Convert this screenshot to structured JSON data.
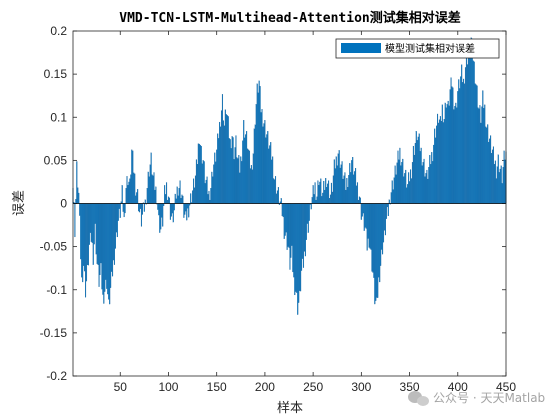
{
  "chart_data": {
    "type": "bar",
    "title": "VMD-TCN-LSTM-Multihead-Attention测试集相对误差",
    "xlabel": "样本",
    "ylabel": "误差",
    "xlim": [
      1,
      450
    ],
    "ylim": [
      -0.2,
      0.2
    ],
    "x_ticks": [
      50,
      100,
      150,
      200,
      250,
      300,
      350,
      400,
      450
    ],
    "y_ticks": [
      -0.2,
      -0.15,
      -0.1,
      -0.05,
      0,
      0.05,
      0.1,
      0.15,
      0.2
    ],
    "x_tick_labels": [
      "50",
      "100",
      "150",
      "200",
      "250",
      "300",
      "350",
      "400",
      "450"
    ],
    "y_tick_labels": [
      "-0.2",
      "-0.15",
      "-0.1",
      "-0.05",
      "0",
      "0.05",
      "0.1",
      "0.15",
      "0.2"
    ],
    "legend": {
      "position": "top-right",
      "entries": [
        "模型测试集相对误差"
      ]
    },
    "series": [
      {
        "name": "模型测试集相对误差",
        "color": "#0072BD",
        "points": [
          [
            1,
            0.02
          ],
          [
            3,
            -0.03
          ],
          [
            5,
            0.04
          ],
          [
            7,
            0.01
          ],
          [
            9,
            -0.06
          ],
          [
            10,
            -0.09
          ],
          [
            12,
            -0.07
          ],
          [
            14,
            -0.1
          ],
          [
            16,
            -0.08
          ],
          [
            18,
            -0.05
          ],
          [
            20,
            -0.04
          ],
          [
            22,
            -0.06
          ],
          [
            24,
            -0.03
          ],
          [
            26,
            -0.07
          ],
          [
            28,
            -0.09
          ],
          [
            30,
            -0.08
          ],
          [
            32,
            -0.11
          ],
          [
            34,
            -0.1
          ],
          [
            36,
            -0.09
          ],
          [
            38,
            -0.12
          ],
          [
            40,
            -0.1
          ],
          [
            42,
            -0.08
          ],
          [
            44,
            -0.06
          ],
          [
            46,
            -0.04
          ],
          [
            48,
            -0.02
          ],
          [
            50,
            -0.01
          ],
          [
            52,
            0.01
          ],
          [
            54,
            -0.02
          ],
          [
            56,
            0.02
          ],
          [
            58,
            0.03
          ],
          [
            60,
            0.02
          ],
          [
            62,
            0.06
          ],
          [
            64,
            0.04
          ],
          [
            66,
            0.02
          ],
          [
            68,
            0.01
          ],
          [
            70,
            -0.01
          ],
          [
            72,
            -0.02
          ],
          [
            74,
            -0.01
          ],
          [
            76,
            0.0
          ],
          [
            78,
            0.02
          ],
          [
            80,
            0.04
          ],
          [
            82,
            0.05
          ],
          [
            84,
            0.03
          ],
          [
            86,
            0.02
          ],
          [
            88,
            0.01
          ],
          [
            90,
            -0.02
          ],
          [
            92,
            -0.03
          ],
          [
            94,
            -0.02
          ],
          [
            96,
            0.01
          ],
          [
            98,
            0.02
          ],
          [
            100,
            0.01
          ],
          [
            102,
            -0.01
          ],
          [
            104,
            -0.02
          ],
          [
            106,
            -0.01
          ],
          [
            108,
            0.01
          ],
          [
            110,
            0.02
          ],
          [
            112,
            0.02
          ],
          [
            114,
            0.01
          ],
          [
            116,
            -0.01
          ],
          [
            118,
            -0.02
          ],
          [
            120,
            -0.01
          ],
          [
            122,
            0.0
          ],
          [
            124,
            0.01
          ],
          [
            126,
            0.02
          ],
          [
            128,
            0.03
          ],
          [
            130,
            0.05
          ],
          [
            132,
            0.08
          ],
          [
            134,
            0.06
          ],
          [
            136,
            0.05
          ],
          [
            138,
            0.03
          ],
          [
            140,
            0.02
          ],
          [
            142,
            0.01
          ],
          [
            144,
            0.02
          ],
          [
            146,
            0.04
          ],
          [
            148,
            0.05
          ],
          [
            150,
            0.06
          ],
          [
            152,
            0.08
          ],
          [
            154,
            0.1
          ],
          [
            156,
            0.12
          ],
          [
            158,
            0.09
          ],
          [
            160,
            0.11
          ],
          [
            162,
            0.09
          ],
          [
            164,
            0.07
          ],
          [
            166,
            0.08
          ],
          [
            168,
            0.06
          ],
          [
            170,
            0.07
          ],
          [
            172,
            0.05
          ],
          [
            174,
            0.04
          ],
          [
            176,
            0.06
          ],
          [
            178,
            0.09
          ],
          [
            180,
            0.08
          ],
          [
            182,
            0.07
          ],
          [
            184,
            0.05
          ],
          [
            186,
            0.04
          ],
          [
            188,
            0.06
          ],
          [
            190,
            0.1
          ],
          [
            192,
            0.13
          ],
          [
            194,
            0.14
          ],
          [
            196,
            0.11
          ],
          [
            198,
            0.1
          ],
          [
            200,
            0.09
          ],
          [
            202,
            0.08
          ],
          [
            204,
            0.07
          ],
          [
            206,
            0.06
          ],
          [
            208,
            0.05
          ],
          [
            210,
            0.03
          ],
          [
            212,
            0.02
          ],
          [
            214,
            0.01
          ],
          [
            216,
            0.0
          ],
          [
            218,
            -0.01
          ],
          [
            220,
            -0.03
          ],
          [
            222,
            -0.04
          ],
          [
            224,
            -0.05
          ],
          [
            226,
            -0.07
          ],
          [
            228,
            -0.06
          ],
          [
            230,
            -0.09
          ],
          [
            232,
            -0.1
          ],
          [
            234,
            -0.12
          ],
          [
            236,
            -0.11
          ],
          [
            238,
            -0.08
          ],
          [
            240,
            -0.07
          ],
          [
            242,
            -0.05
          ],
          [
            244,
            -0.03
          ],
          [
            246,
            -0.02
          ],
          [
            248,
            0.0
          ],
          [
            250,
            0.01
          ],
          [
            252,
            0.02
          ],
          [
            254,
            0.01
          ],
          [
            256,
            0.03
          ],
          [
            258,
            0.02
          ],
          [
            260,
            0.01
          ],
          [
            262,
            0.02
          ],
          [
            264,
            0.03
          ],
          [
            266,
            0.02
          ],
          [
            268,
            0.01
          ],
          [
            270,
            0.02
          ],
          [
            272,
            0.04
          ],
          [
            274,
            0.05
          ],
          [
            276,
            0.06
          ],
          [
            278,
            0.05
          ],
          [
            280,
            0.04
          ],
          [
            282,
            0.03
          ],
          [
            284,
            0.02
          ],
          [
            286,
            0.03
          ],
          [
            288,
            0.04
          ],
          [
            290,
            0.05
          ],
          [
            292,
            0.04
          ],
          [
            294,
            0.03
          ],
          [
            296,
            0.02
          ],
          [
            298,
            0.01
          ],
          [
            300,
            -0.01
          ],
          [
            302,
            -0.02
          ],
          [
            304,
            -0.03
          ],
          [
            306,
            -0.05
          ],
          [
            308,
            -0.04
          ],
          [
            310,
            -0.06
          ],
          [
            312,
            -0.08
          ],
          [
            314,
            -0.11
          ],
          [
            316,
            -0.12
          ],
          [
            318,
            -0.09
          ],
          [
            320,
            -0.07
          ],
          [
            322,
            -0.05
          ],
          [
            324,
            -0.04
          ],
          [
            326,
            -0.02
          ],
          [
            328,
            -0.01
          ],
          [
            330,
            0.01
          ],
          [
            332,
            0.02
          ],
          [
            334,
            0.03
          ],
          [
            336,
            0.04
          ],
          [
            338,
            0.05
          ],
          [
            340,
            0.06
          ],
          [
            342,
            0.05
          ],
          [
            344,
            0.04
          ],
          [
            346,
            0.03
          ],
          [
            348,
            0.02
          ],
          [
            350,
            0.03
          ],
          [
            352,
            0.04
          ],
          [
            354,
            0.06
          ],
          [
            356,
            0.07
          ],
          [
            358,
            0.08
          ],
          [
            360,
            0.07
          ],
          [
            362,
            0.06
          ],
          [
            364,
            0.05
          ],
          [
            366,
            0.04
          ],
          [
            368,
            0.03
          ],
          [
            370,
            0.04
          ],
          [
            372,
            0.05
          ],
          [
            374,
            0.06
          ],
          [
            376,
            0.08
          ],
          [
            378,
            0.09
          ],
          [
            380,
            0.1
          ],
          [
            382,
            0.09
          ],
          [
            384,
            0.11
          ],
          [
            386,
            0.1
          ],
          [
            388,
            0.12
          ],
          [
            390,
            0.11
          ],
          [
            392,
            0.13
          ],
          [
            394,
            0.14
          ],
          [
            396,
            0.12
          ],
          [
            398,
            0.11
          ],
          [
            400,
            0.13
          ],
          [
            402,
            0.14
          ],
          [
            404,
            0.15
          ],
          [
            406,
            0.14
          ],
          [
            408,
            0.16
          ],
          [
            410,
            0.17
          ],
          [
            412,
            0.18
          ],
          [
            414,
            0.19
          ],
          [
            416,
            0.17
          ],
          [
            418,
            0.15
          ],
          [
            420,
            0.13
          ],
          [
            422,
            0.11
          ],
          [
            424,
            0.1
          ],
          [
            426,
            0.12
          ],
          [
            428,
            0.11
          ],
          [
            430,
            0.09
          ],
          [
            432,
            0.08
          ],
          [
            434,
            0.07
          ],
          [
            436,
            0.06
          ],
          [
            438,
            0.05
          ],
          [
            440,
            0.04
          ],
          [
            442,
            0.05
          ],
          [
            444,
            0.04
          ],
          [
            446,
            0.03
          ],
          [
            448,
            0.05
          ],
          [
            450,
            0.06
          ]
        ]
      }
    ]
  },
  "watermark": {
    "text": "公众号 · 天天Matlab",
    "icon": "wechat-icon"
  }
}
